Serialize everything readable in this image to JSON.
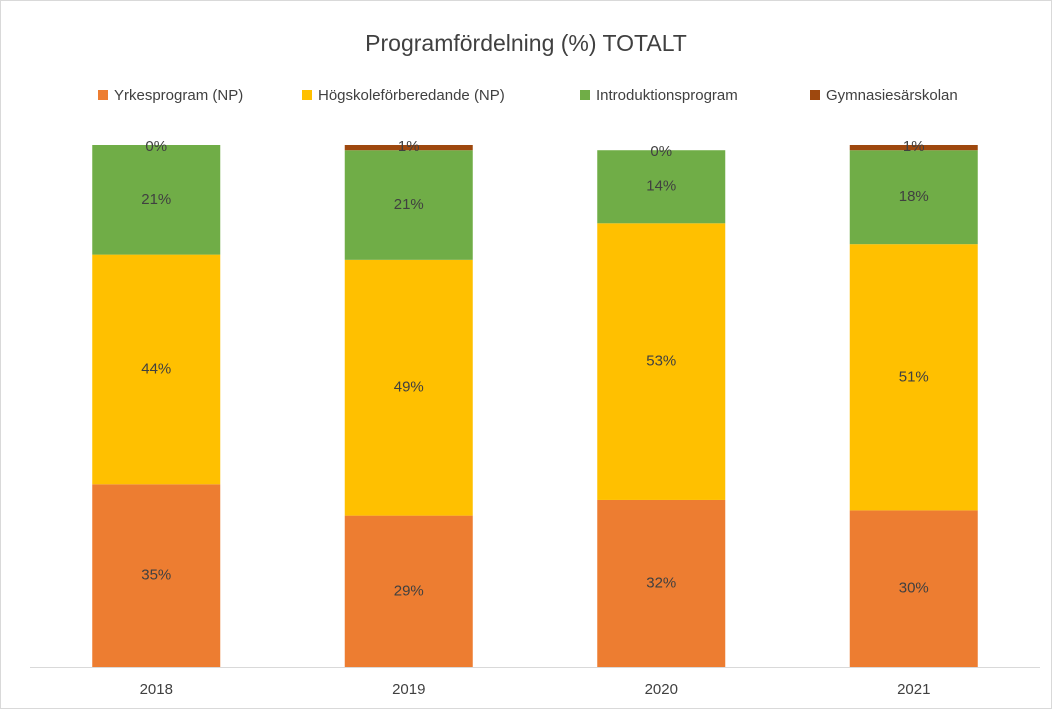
{
  "chart_data": {
    "type": "stacked_bar",
    "title": "Programfördelning (%) TOTALT",
    "categories": [
      "2018",
      "2019",
      "2020",
      "2021"
    ],
    "series": [
      {
        "name": "Yrkesprogram (NP)",
        "color": "#ED7D31",
        "values": [
          35,
          29,
          32,
          30
        ],
        "value_labels": [
          "35%",
          "29%",
          "32%",
          "30%"
        ]
      },
      {
        "name": "Högskoleförberedande (NP)",
        "color": "#FFC000",
        "values": [
          44,
          49,
          53,
          51
        ],
        "value_labels": [
          "44%",
          "49%",
          "53%",
          "51%"
        ]
      },
      {
        "name": "Introduktionsprogram",
        "color": "#70AD47",
        "values": [
          21,
          21,
          14,
          18
        ],
        "value_labels": [
          "21%",
          "21%",
          "14%",
          "18%"
        ]
      },
      {
        "name": "Gymnasiesärskolan",
        "color": "#9E480E",
        "values": [
          0,
          1,
          0,
          1
        ],
        "value_labels": [
          "0%",
          "1%",
          "0%",
          "1%"
        ]
      }
    ],
    "ylim": [
      0,
      100
    ],
    "legend": "top"
  }
}
